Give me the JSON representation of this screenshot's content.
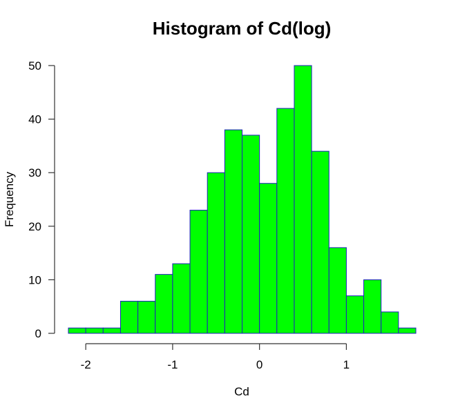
{
  "chart_data": {
    "type": "bar",
    "title": "Histogram of Cd(log)",
    "xlabel": "Cd",
    "ylabel": "Frequency",
    "bin_edges": [
      -2.2,
      -2.0,
      -1.8,
      -1.6,
      -1.4,
      -1.2,
      -1.0,
      -0.8,
      -0.6,
      -0.4,
      -0.2,
      0.0,
      0.2,
      0.4,
      0.6,
      0.8,
      1.0,
      1.2,
      1.4,
      1.6,
      1.8
    ],
    "values": [
      1,
      1,
      1,
      6,
      6,
      11,
      13,
      23,
      30,
      38,
      37,
      28,
      42,
      50,
      34,
      16,
      7,
      10,
      4,
      1
    ],
    "xlim": [
      -2.2,
      1.8
    ],
    "ylim": [
      0,
      50
    ],
    "x_ticks": [
      -2,
      -1,
      0,
      1
    ],
    "x_tick_labels": [
      "-2",
      "-1",
      "0",
      "1"
    ],
    "y_ticks": [
      0,
      10,
      20,
      30,
      40,
      50
    ],
    "y_tick_labels": [
      "0",
      "10",
      "20",
      "30",
      "40",
      "50"
    ],
    "bar_fill": "#00ff00",
    "bar_border": "#1f1fbf",
    "grid": false
  }
}
